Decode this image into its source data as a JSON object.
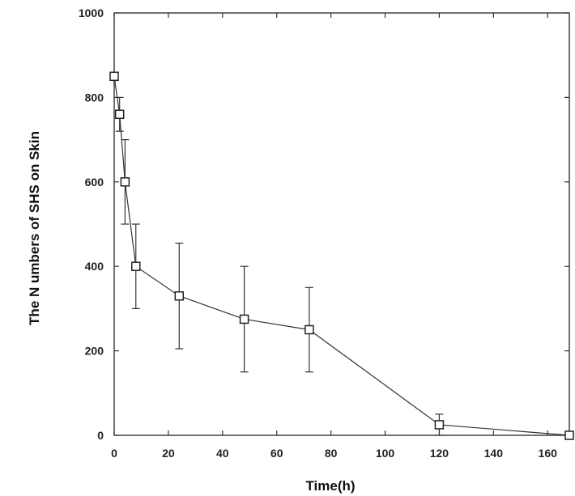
{
  "chart_data": {
    "type": "line",
    "title": "",
    "xlabel": "Time(h)",
    "ylabel": "The N umbers of SHS on Skin",
    "xlim": [
      0,
      168
    ],
    "ylim": [
      0,
      1000
    ],
    "xticks": [
      0,
      20,
      40,
      60,
      80,
      100,
      120,
      140,
      160
    ],
    "yticks": [
      0,
      200,
      400,
      600,
      800,
      1000
    ],
    "grid": false,
    "legend": "none",
    "marker": "open-square",
    "colors": {
      "line": "#333333",
      "marker_fill": "#ffffff",
      "marker_edge": "#222222"
    },
    "series": [
      {
        "x": [
          0,
          2,
          4,
          8,
          24,
          48,
          72,
          120,
          168
        ],
        "y": [
          850,
          760,
          600,
          400,
          330,
          275,
          250,
          25,
          0
        ],
        "error": [
          null,
          40,
          100,
          100,
          125,
          125,
          100,
          25,
          null
        ]
      }
    ]
  }
}
